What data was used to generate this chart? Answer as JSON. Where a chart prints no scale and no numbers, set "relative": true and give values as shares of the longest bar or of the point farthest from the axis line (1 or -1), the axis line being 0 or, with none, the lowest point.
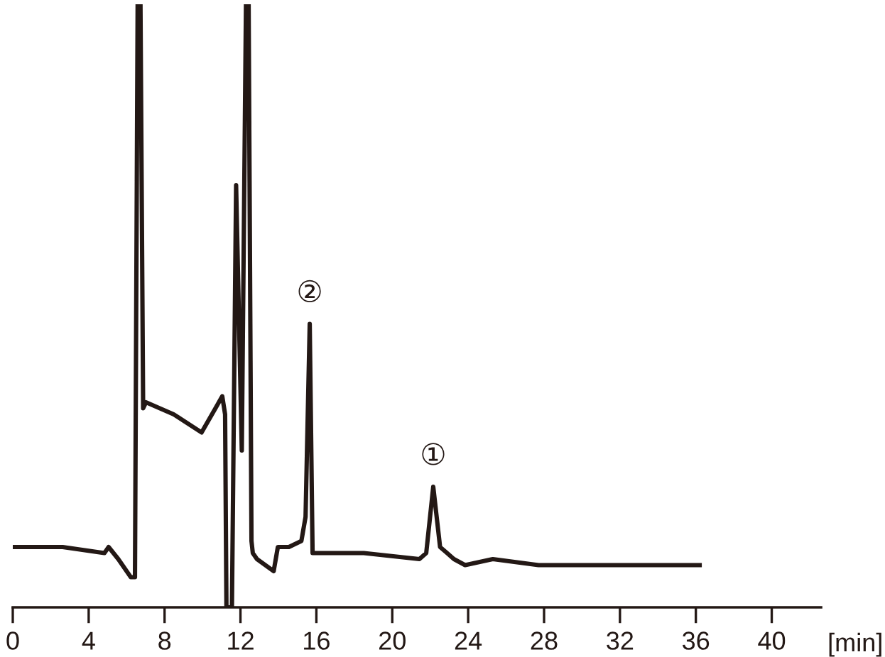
{
  "chart_data": {
    "type": "line",
    "relative": true,
    "xlabel": "[min]",
    "x": [
      0,
      2.63,
      4.83,
      5.05,
      5.56,
      6.22,
      6.44,
      6.58,
      6.73,
      6.87,
      7.02,
      8.48,
      9.95,
      10.68,
      11.04,
      11.19,
      11.26,
      11.55,
      11.77,
      12.07,
      12.29,
      12.43,
      12.58,
      12.65,
      12.87,
      13.31,
      13.75,
      13.97,
      14.55,
      15.21,
      15.43,
      15.65,
      15.8,
      16.02,
      18.5,
      21.43,
      21.79,
      22.16,
      22.52,
      22.89,
      23.25,
      23.84,
      25.3,
      27.71,
      29.91,
      31.15,
      32.61,
      36.2
    ],
    "series": [
      {
        "color": "#231815",
        "values": [
          0.1,
          0.1,
          0.09,
          0.1,
          0.08,
          0.05,
          0.05,
          1,
          1,
          0.33,
          0.34,
          0.32,
          0.29,
          0.33,
          0.35,
          0.32,
          0,
          0,
          0.7,
          0.26,
          1,
          1,
          0.11,
          0.09,
          0.08,
          0.07,
          0.06,
          0.1,
          0.1,
          0.11,
          0.15,
          0.47,
          0.09,
          0.09,
          0.09,
          0.08,
          0.09,
          0.2,
          0.1,
          0.09,
          0.08,
          0.07,
          0.08,
          0.07,
          0.07,
          0.07,
          0.07,
          0.07
        ]
      }
    ],
    "xlim": [
      0,
      42.6
    ],
    "xticks": [
      0,
      4,
      8,
      12,
      16,
      20,
      24,
      28,
      32,
      36,
      40
    ],
    "annotations": [
      {
        "text": "②",
        "x": 15.65,
        "y": 0.47
      },
      {
        "text": "①",
        "x": 22.16,
        "y": 0.2
      }
    ]
  }
}
